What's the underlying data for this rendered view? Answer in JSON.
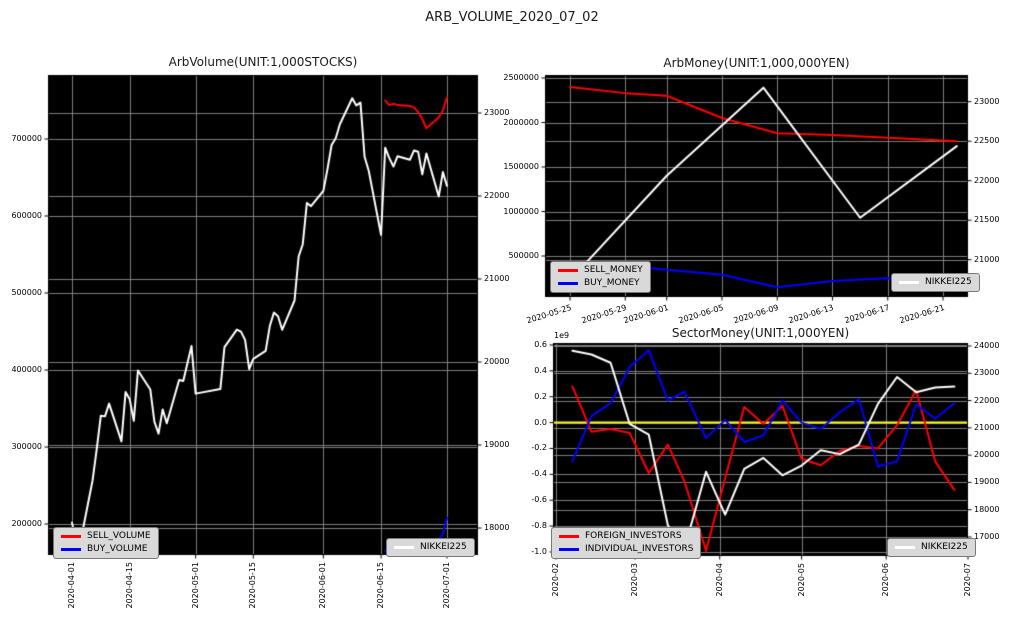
{
  "title": "ARB_VOLUME_2020_07_02",
  "colors": {
    "figure_background": "#ffffff",
    "plot_background": "#000000",
    "grid": "#8a8a8a",
    "zero_line": "#ffff00",
    "sell": "#ff0000",
    "buy": "#0000ff",
    "nikkei": "#ffffff"
  },
  "chart_data": [
    {
      "id": "arb_volume",
      "type": "line",
      "title": "ArbVolume(UNIT:1,000STOCKS)",
      "x_ticks": [
        "2020-04-01",
        "2020-04-15",
        "2020-05-01",
        "2020-05-15",
        "2020-06-01",
        "2020-06-15",
        "2020-07-01"
      ],
      "left_ticks": [
        {
          "v": 200000,
          "label": "200000"
        },
        {
          "v": 300000,
          "label": "300000"
        },
        {
          "v": 400000,
          "label": "400000"
        },
        {
          "v": 500000,
          "label": "500000"
        },
        {
          "v": 600000,
          "label": "600000"
        },
        {
          "v": 700000,
          "label": "700000"
        }
      ],
      "right_ticks": [
        {
          "v": 18000,
          "label": "18000"
        },
        {
          "v": 19000,
          "label": "19000"
        },
        {
          "v": 20000,
          "label": "20000"
        },
        {
          "v": 21000,
          "label": "21000"
        },
        {
          "v": 22000,
          "label": "22000"
        },
        {
          "v": 23000,
          "label": "23000"
        }
      ],
      "series": [
        {
          "name": "SELL_VOLUME",
          "color": "#ff0000",
          "axis": "left",
          "dates": [
            "2020-06-16",
            "2020-06-17",
            "2020-06-18",
            "2020-06-19",
            "2020-06-22",
            "2020-06-23",
            "2020-06-24",
            "2020-06-25",
            "2020-06-26",
            "2020-06-29",
            "2020-06-30",
            "2020-07-01"
          ],
          "values": [
            750000,
            744000,
            746000,
            744000,
            743000,
            741000,
            735000,
            726000,
            714000,
            728000,
            737000,
            754000
          ]
        },
        {
          "name": "BUY_VOLUME",
          "color": "#0000ff",
          "axis": "left",
          "dates": [
            "2020-06-16",
            "2020-06-17",
            "2020-06-18",
            "2020-06-19",
            "2020-06-22",
            "2020-06-23",
            "2020-06-24",
            "2020-06-25",
            "2020-06-26",
            "2020-06-29",
            "2020-06-30",
            "2020-07-01"
          ],
          "values": [
            165000,
            166000,
            166000,
            168000,
            167000,
            170000,
            172000,
            171000,
            174000,
            178000,
            188000,
            208000
          ]
        },
        {
          "name": "NIKKEI225",
          "color": "#ffffff",
          "axis": "right",
          "dates": [
            "2020-04-01",
            "2020-04-02",
            "2020-04-03",
            "2020-04-06",
            "2020-04-07",
            "2020-04-08",
            "2020-04-09",
            "2020-04-10",
            "2020-04-13",
            "2020-04-14",
            "2020-04-15",
            "2020-04-16",
            "2020-04-17",
            "2020-04-20",
            "2020-04-21",
            "2020-04-22",
            "2020-04-23",
            "2020-04-24",
            "2020-04-27",
            "2020-04-28",
            "2020-04-30",
            "2020-05-01",
            "2020-05-07",
            "2020-05-08",
            "2020-05-11",
            "2020-05-12",
            "2020-05-13",
            "2020-05-14",
            "2020-05-15",
            "2020-05-18",
            "2020-05-19",
            "2020-05-20",
            "2020-05-21",
            "2020-05-22",
            "2020-05-25",
            "2020-05-26",
            "2020-05-27",
            "2020-05-28",
            "2020-05-29",
            "2020-06-01",
            "2020-06-02",
            "2020-06-03",
            "2020-06-04",
            "2020-06-05",
            "2020-06-08",
            "2020-06-09",
            "2020-06-10",
            "2020-06-11",
            "2020-06-12",
            "2020-06-15",
            "2020-06-16",
            "2020-06-17",
            "2020-06-18",
            "2020-06-19",
            "2020-06-22",
            "2020-06-23",
            "2020-06-24",
            "2020-06-25",
            "2020-06-26",
            "2020-06-29",
            "2020-06-30",
            "2020-07-01"
          ],
          "values": [
            18065,
            17819,
            17820,
            18576,
            18950,
            19353,
            19345,
            19499,
            19043,
            19638,
            19550,
            19290,
            19897,
            19669,
            19280,
            19137,
            19429,
            19262,
            19783,
            19771,
            20193,
            19619,
            19674,
            20179,
            20390,
            20366,
            20267,
            19914,
            20037,
            20133,
            20433,
            20595,
            20552,
            20388,
            20741,
            21271,
            21419,
            21916,
            21878,
            22062,
            22326,
            22614,
            22696,
            22864,
            23178,
            23091,
            23125,
            22473,
            22305,
            21531,
            22582,
            22456,
            22355,
            22479,
            22437,
            22549,
            22534,
            22260,
            22512,
            21995,
            22288,
            22122
          ]
        }
      ],
      "legends": [
        {
          "position": "lower-left",
          "items": [
            {
              "label": "SELL_VOLUME",
              "color": "#ff0000"
            },
            {
              "label": "BUY_VOLUME",
              "color": "#0000ff"
            }
          ]
        },
        {
          "position": "lower-right",
          "items": [
            {
              "label": "NIKKEI225",
              "color": "#ffffff"
            }
          ]
        }
      ]
    },
    {
      "id": "arb_money",
      "type": "line",
      "title": "ArbMoney(UNIT:1,000,000YEN)",
      "x_ticks": [
        "2020-05-25",
        "2020-05-29",
        "2020-06-01",
        "2020-06-05",
        "2020-06-09",
        "2020-06-13",
        "2020-06-17",
        "2020-06-21"
      ],
      "left_ticks": [
        {
          "v": 500000,
          "label": "500000"
        },
        {
          "v": 1000000,
          "label": "1000000"
        },
        {
          "v": 1500000,
          "label": "1500000"
        },
        {
          "v": 2000000,
          "label": "2000000"
        },
        {
          "v": 2500000,
          "label": "2500000"
        }
      ],
      "right_ticks": [
        {
          "v": 21000,
          "label": "21000"
        },
        {
          "v": 21500,
          "label": "21500"
        },
        {
          "v": 22000,
          "label": "22000"
        },
        {
          "v": 22500,
          "label": "22500"
        },
        {
          "v": 23000,
          "label": "23000"
        }
      ],
      "series": [
        {
          "name": "SELL_MONEY",
          "color": "#ff0000",
          "axis": "left",
          "dates": [
            "2020-05-25",
            "2020-05-29",
            "2020-06-01",
            "2020-06-05",
            "2020-06-09",
            "2020-06-13",
            "2020-06-17",
            "2020-06-22"
          ],
          "values": [
            2400000,
            2330000,
            2300000,
            2050000,
            1880000,
            1860000,
            1830000,
            1790000
          ]
        },
        {
          "name": "BUY_MONEY",
          "color": "#0000ff",
          "axis": "left",
          "dates": [
            "2020-05-25",
            "2020-05-29",
            "2020-06-01",
            "2020-06-05",
            "2020-06-09",
            "2020-06-13",
            "2020-06-17",
            "2020-06-22"
          ],
          "values": [
            420000,
            390000,
            345000,
            290000,
            150000,
            220000,
            250000,
            243000
          ]
        },
        {
          "name": "NIKKEI225",
          "color": "#ffffff",
          "axis": "right",
          "dates": [
            "2020-05-25",
            "2020-06-01",
            "2020-06-08",
            "2020-06-15",
            "2020-06-22"
          ],
          "values": [
            20741,
            22062,
            23178,
            21531,
            22437
          ]
        }
      ],
      "legends": [
        {
          "position": "lower-left",
          "items": [
            {
              "label": "SELL_MONEY",
              "color": "#ff0000"
            },
            {
              "label": "BUY_MONEY",
              "color": "#0000ff"
            }
          ]
        },
        {
          "position": "lower-right",
          "items": [
            {
              "label": "NIKKEI225",
              "color": "#ffffff"
            }
          ]
        }
      ]
    },
    {
      "id": "sector_money",
      "type": "line",
      "title": "SectorMoney(UNIT:1,000YEN)",
      "offset_text": "1e9",
      "x_ticks": [
        "2020-02-01",
        "2020-03-01",
        "2020-04-01",
        "2020-05-01",
        "2020-06-01",
        "2020-07-01"
      ],
      "x_tick_display": [
        "2020-02",
        "2020-03",
        "2020-04",
        "2020-05",
        "2020-06",
        "2020-07"
      ],
      "left_ticks": [
        {
          "v": -1000000000,
          "label": "-1.0"
        },
        {
          "v": -800000000,
          "label": "-0.8"
        },
        {
          "v": -600000000,
          "label": "-0.6"
        },
        {
          "v": -400000000,
          "label": "-0.4"
        },
        {
          "v": -200000000,
          "label": "-0.2"
        },
        {
          "v": 0,
          "label": "0.0"
        },
        {
          "v": 200000000,
          "label": "0.2"
        },
        {
          "v": 400000000,
          "label": "0.4"
        },
        {
          "v": 600000000,
          "label": "0.6"
        }
      ],
      "right_ticks": [
        {
          "v": 17000,
          "label": "17000"
        },
        {
          "v": 18000,
          "label": "18000"
        },
        {
          "v": 19000,
          "label": "19000"
        },
        {
          "v": 20000,
          "label": "20000"
        },
        {
          "v": 21000,
          "label": "21000"
        },
        {
          "v": 22000,
          "label": "22000"
        },
        {
          "v": 23000,
          "label": "23000"
        },
        {
          "v": 24000,
          "label": "24000"
        }
      ],
      "series": [
        {
          "name": "FOREIGN_INVESTORS",
          "color": "#ff0000",
          "axis": "left",
          "dates": [
            "2020-02-07",
            "2020-02-14",
            "2020-02-21",
            "2020-02-28",
            "2020-03-06",
            "2020-03-13",
            "2020-03-19",
            "2020-03-27",
            "2020-04-03",
            "2020-04-10",
            "2020-04-17",
            "2020-04-24",
            "2020-05-01",
            "2020-05-08",
            "2020-05-15",
            "2020-05-22",
            "2020-05-29",
            "2020-06-05",
            "2020-06-12",
            "2020-06-19",
            "2020-06-26"
          ],
          "values": [
            280000000,
            -70000000,
            -50000000,
            -80000000,
            -390000000,
            -170000000,
            -450000000,
            -990000000,
            -430000000,
            120000000,
            -10000000,
            130000000,
            -280000000,
            -330000000,
            -220000000,
            -180000000,
            -200000000,
            -20000000,
            250000000,
            -300000000,
            -520000000
          ]
        },
        {
          "name": "INDIVIDUAL_INVESTORS",
          "color": "#0000ff",
          "axis": "left",
          "dates": [
            "2020-02-07",
            "2020-02-14",
            "2020-02-21",
            "2020-02-28",
            "2020-03-06",
            "2020-03-13",
            "2020-03-19",
            "2020-03-27",
            "2020-04-03",
            "2020-04-10",
            "2020-04-17",
            "2020-04-24",
            "2020-05-01",
            "2020-05-08",
            "2020-05-15",
            "2020-05-22",
            "2020-05-29",
            "2020-06-05",
            "2020-06-12",
            "2020-06-19",
            "2020-06-26"
          ],
          "values": [
            -300000000,
            50000000,
            150000000,
            430000000,
            560000000,
            170000000,
            240000000,
            -120000000,
            20000000,
            -150000000,
            -100000000,
            170000000,
            0,
            -50000000,
            80000000,
            180000000,
            -340000000,
            -300000000,
            140000000,
            30000000,
            150000000
          ]
        },
        {
          "name": "NIKKEI225",
          "color": "#ffffff",
          "axis": "right",
          "dates": [
            "2020-02-07",
            "2020-02-14",
            "2020-02-21",
            "2020-02-28",
            "2020-03-06",
            "2020-03-13",
            "2020-03-19",
            "2020-03-27",
            "2020-04-03",
            "2020-04-10",
            "2020-04-17",
            "2020-04-24",
            "2020-05-01",
            "2020-05-08",
            "2020-05-15",
            "2020-05-22",
            "2020-05-29",
            "2020-06-05",
            "2020-06-12",
            "2020-06-19",
            "2020-06-26"
          ],
          "values": [
            23827,
            23687,
            23386,
            21142,
            20749,
            17431,
            16552,
            19389,
            17820,
            19498,
            19897,
            19262,
            19619,
            20179,
            20037,
            20388,
            21878,
            22864,
            22305,
            22478,
            22512
          ]
        }
      ],
      "legends": [
        {
          "position": "lower-left",
          "items": [
            {
              "label": "FOREIGN_INVESTORS",
              "color": "#ff0000"
            },
            {
              "label": "INDIVIDUAL_INVESTORS",
              "color": "#0000ff"
            }
          ]
        },
        {
          "position": "lower-right",
          "items": [
            {
              "label": "NIKKEI225",
              "color": "#ffffff"
            }
          ]
        }
      ]
    }
  ]
}
